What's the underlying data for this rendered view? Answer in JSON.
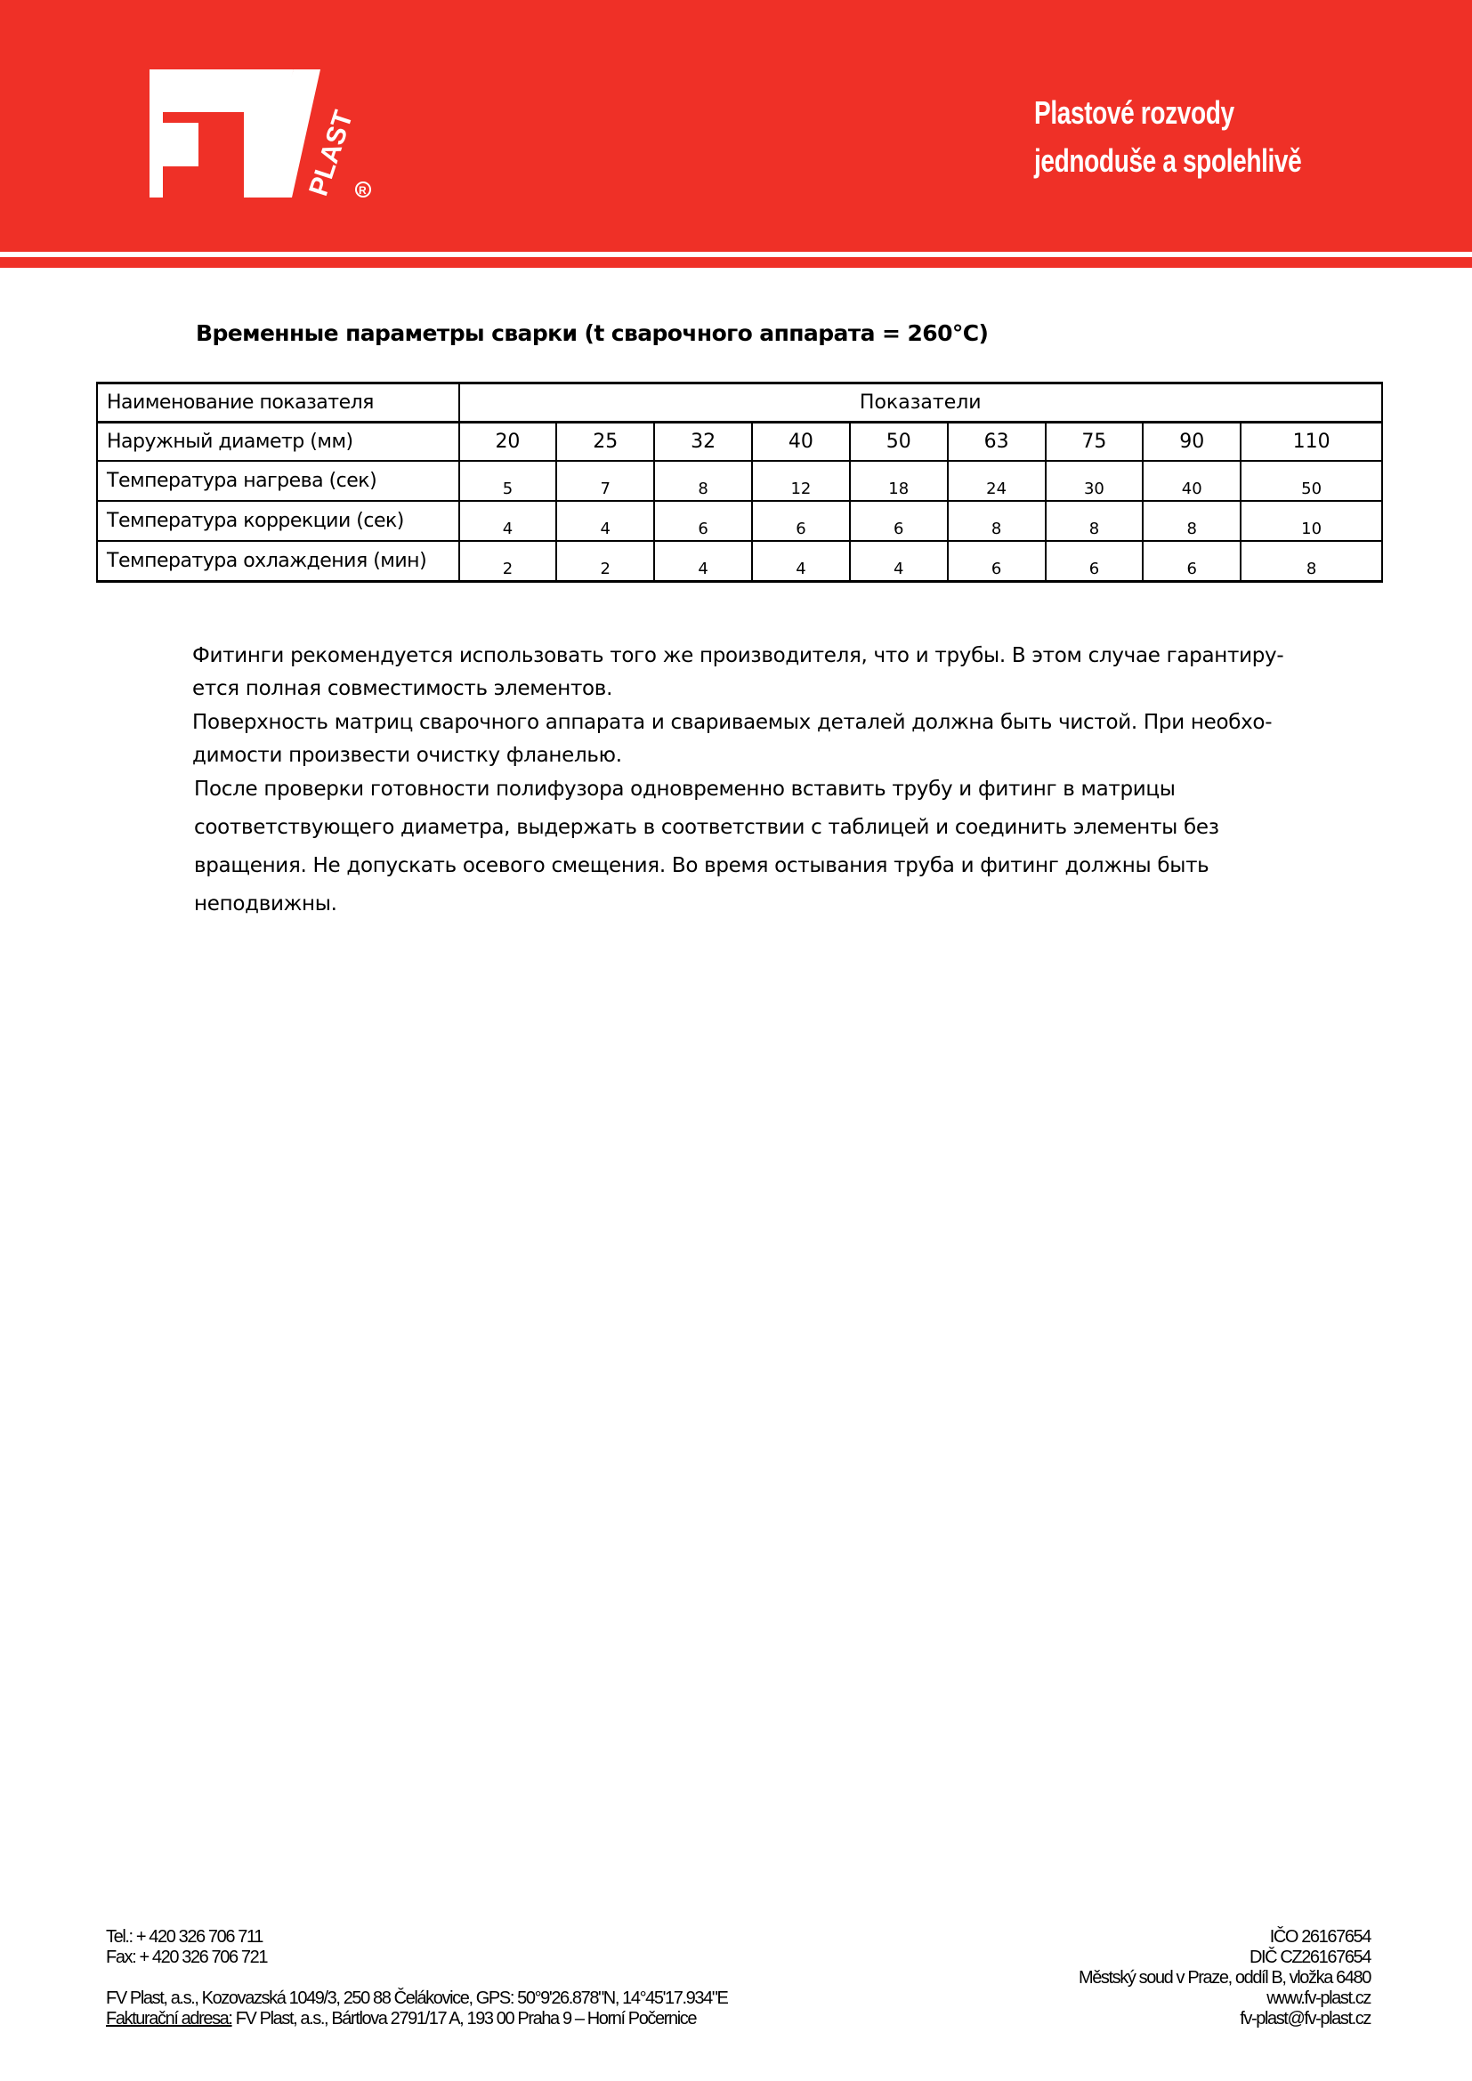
{
  "header": {
    "logo_text": "FV PLAST",
    "tagline_line1": "Plastové rozvody",
    "tagline_line2": "jednoduše a spolehlivě",
    "brand_color": "#ef3027"
  },
  "title": "Временные параметры сварки (t сварочного аппарата = 260°C)",
  "table": {
    "header_label": "Наименование показателя",
    "header_values": "Показатели",
    "rows": [
      {
        "label": "Наружный диаметр (мм)",
        "values": [
          "20",
          "25",
          "32",
          "40",
          "50",
          "63",
          "75",
          "90",
          "110"
        ]
      },
      {
        "label": "Температура нагрева (сек)",
        "values": [
          "5",
          "7",
          "8",
          "12",
          "18",
          "24",
          "30",
          "40",
          "50"
        ]
      },
      {
        "label": "Температура коррекции (сек)",
        "values": [
          "4",
          "4",
          "6",
          "6",
          "6",
          "8",
          "8",
          "8",
          "10"
        ]
      },
      {
        "label": "Температура охлаждения (мин)",
        "values": [
          "2",
          "2",
          "4",
          "4",
          "4",
          "6",
          "6",
          "6",
          "8"
        ]
      }
    ]
  },
  "body": {
    "lines": [
      "Фитинги рекомендуется использовать того же производителя, что и трубы. В этом случае гаранти­ру-",
      "ется полная совместимость элементов.",
      "Поверхность матриц сварочного аппарата и свариваемых деталей должна быть чистой. При необхо-",
      "димости произвести очистку фланелью.",
      "После проверки готовности полифузора одновременно вставить трубу и фитинг в матрицы",
      "соответствующего диаметра, выдержать в соответствии с таблицей и соединить элементы без",
      "вращения. Не допускать осевого смещения. Во время остывания труба и фитинг должны быть",
      "неподвижны."
    ]
  },
  "footer": {
    "tel": "Tel.: + 420 326 706 711",
    "fax": "Fax: + 420 326 706 721",
    "address": "FV Plast, a.s., Kozovazská 1049/3, 250 88 Čelákovice, GPS: 50°9'26.878\"N, 14°45'17.934\"E",
    "billing_label": "Fakturační adresa:",
    "billing_address": " FV Plast, a.s., Bártlova 2791/17 A, 193 00  Praha 9 – Horní Počernice",
    "ico": "IČO  26167654",
    "dic": "DIČ  CZ26167654",
    "court": "Městský soud v Praze, oddíl B, vložka 6480",
    "web": "www.fv-plast.cz",
    "email": "fv-plast@fv-plast.cz"
  }
}
